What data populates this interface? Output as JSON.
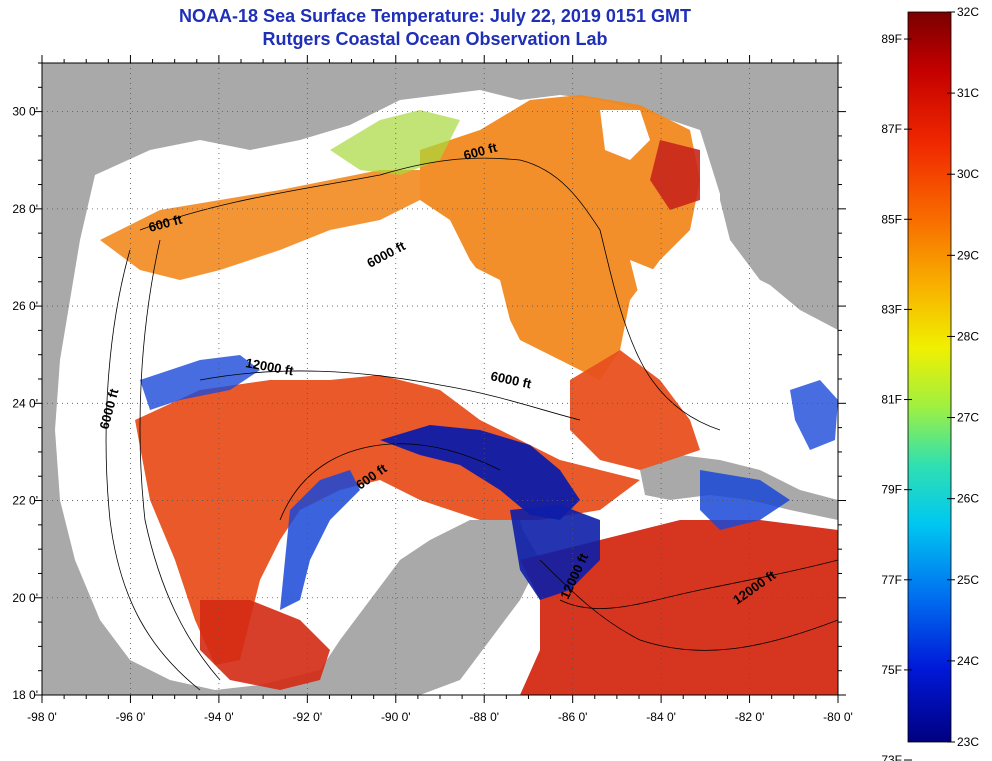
{
  "title": {
    "line1": "NOAA-18 Sea Surface Temperature:  July 22, 2019 0151 GMT",
    "line2": "Rutgers Coastal Ocean Observation Lab"
  },
  "colors": {
    "title": "#1f2fb8",
    "land": "#a9a9a9",
    "no_data": "#ffffff",
    "warm": "#e8501e",
    "hot": "#d42a14",
    "orange": "#f2891f",
    "cool": "#0d1ea8"
  },
  "map": {
    "lon_labels": [
      "-98 0'",
      "-96 0'",
      "-94 0'",
      "-92 0'",
      "-90 0'",
      "-88 0'",
      "-86 0'",
      "-84 0'",
      "-82 0'",
      "-80 0'"
    ],
    "lat_labels": [
      "30 0'",
      "28 0'",
      "26 0'",
      "24 0'",
      "22 0'",
      "20 0'",
      "18 0'"
    ],
    "lon_range": [
      -98,
      -80
    ],
    "lat_range": [
      18,
      31
    ],
    "contour_labels": [
      "600 ft",
      "600 ft",
      "6000 ft",
      "12000 ft",
      "6000 ft",
      "6000 ft",
      "600 ft",
      "12000 ft",
      "12000 ft"
    ]
  },
  "legend": {
    "celsius": [
      "32C",
      "31C",
      "30C",
      "29C",
      "28C",
      "27C",
      "26C",
      "25C",
      "24C",
      "23C"
    ],
    "fahrenheit": [
      "89F",
      "87F",
      "85F",
      "83F",
      "81F",
      "79F",
      "77F",
      "75F",
      "73F"
    ],
    "range_c": [
      23,
      32
    ]
  }
}
